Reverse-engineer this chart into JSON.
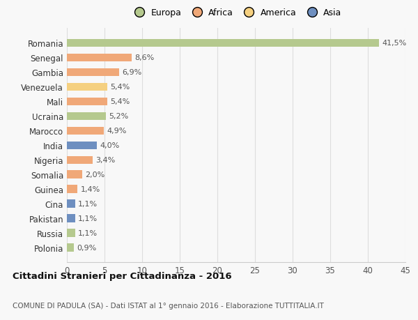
{
  "categories": [
    "Romania",
    "Senegal",
    "Gambia",
    "Venezuela",
    "Mali",
    "Ucraina",
    "Marocco",
    "India",
    "Nigeria",
    "Somalia",
    "Guinea",
    "Cina",
    "Pakistan",
    "Russia",
    "Polonia"
  ],
  "values": [
    41.5,
    8.6,
    6.9,
    5.4,
    5.4,
    5.2,
    4.9,
    4.0,
    3.4,
    2.0,
    1.4,
    1.1,
    1.1,
    1.1,
    0.9
  ],
  "labels": [
    "41,5%",
    "8,6%",
    "6,9%",
    "5,4%",
    "5,4%",
    "5,2%",
    "4,9%",
    "4,0%",
    "3,4%",
    "2,0%",
    "1,4%",
    "1,1%",
    "1,1%",
    "1,1%",
    "0,9%"
  ],
  "colors": [
    "#b5c98e",
    "#f0a878",
    "#f0a878",
    "#f5d080",
    "#f0a878",
    "#b5c98e",
    "#f0a878",
    "#6e8fc0",
    "#f0a878",
    "#f0a878",
    "#f0a878",
    "#6e8fc0",
    "#6e8fc0",
    "#b5c98e",
    "#b5c98e"
  ],
  "legend_labels": [
    "Europa",
    "Africa",
    "America",
    "Asia"
  ],
  "legend_colors": [
    "#b5c98e",
    "#f0a878",
    "#f5d080",
    "#6e8fc0"
  ],
  "title": "Cittadini Stranieri per Cittadinanza - 2016",
  "subtitle": "COMUNE DI PADULA (SA) - Dati ISTAT al 1° gennaio 2016 - Elaborazione TUTTITALIA.IT",
  "xlim": [
    0,
    45
  ],
  "xticks": [
    0,
    5,
    10,
    15,
    20,
    25,
    30,
    35,
    40,
    45
  ],
  "background_color": "#f8f8f8",
  "grid_color": "#dddddd",
  "bar_height": 0.55
}
